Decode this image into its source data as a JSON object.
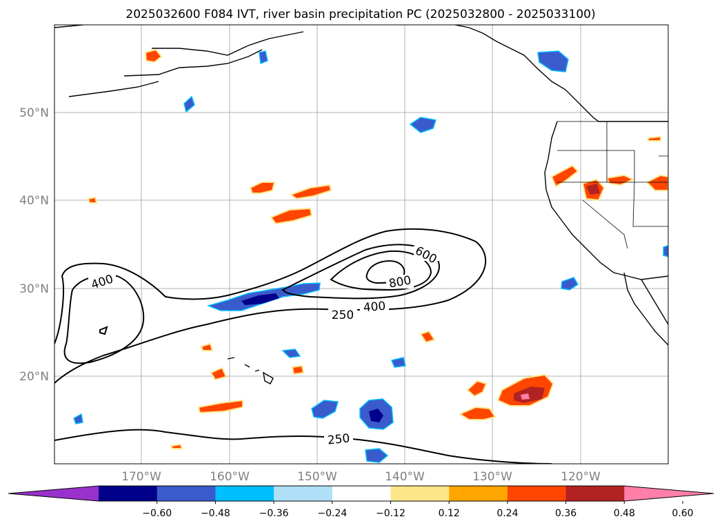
{
  "title": "2025032600 F084 IVT, river basin precipitation PC (2025032800 - 2025033100)",
  "lat_labels": [
    "50°N",
    "40°N",
    "30°N",
    "20°N"
  ],
  "lon_labels": [
    "170°W",
    "160°W",
    "150°W",
    "140°W",
    "130°W",
    "120°W"
  ],
  "contour_labels": [
    "400",
    "600",
    "800",
    "400",
    "250",
    "250"
  ],
  "colorbar": {
    "ticks": [
      "−0.60",
      "−0.48",
      "−0.36",
      "−0.24",
      "−0.12",
      "0.12",
      "0.24",
      "0.36",
      "0.48",
      "0.60"
    ],
    "colors": [
      "#9932cc",
      "#00008b",
      "#3a5bcc",
      "#00bfff",
      "#afe0f8",
      "#ffffff",
      "#fde68a",
      "#ffa500",
      "#ff4500",
      "#b22222",
      "#ff7fa8"
    ]
  },
  "colors": {
    "coastline": "#000000",
    "grid": "#b0b0b0",
    "ivt_contour": "#000000",
    "axis_label": "#7f7f7f"
  }
}
